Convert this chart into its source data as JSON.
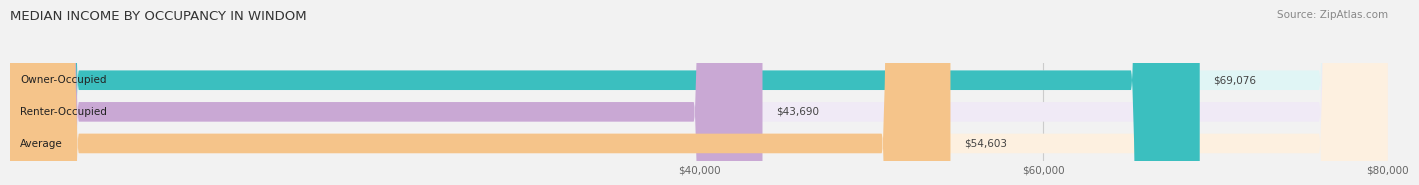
{
  "title": "MEDIAN INCOME BY OCCUPANCY IN WINDOM",
  "source": "Source: ZipAtlas.com",
  "categories": [
    "Owner-Occupied",
    "Renter-Occupied",
    "Average"
  ],
  "values": [
    69076,
    43690,
    54603
  ],
  "labels": [
    "$69,076",
    "$43,690",
    "$54,603"
  ],
  "bar_colors": [
    "#3bbfbf",
    "#c9a8d4",
    "#f5c48a"
  ],
  "bar_bg_colors": [
    "#e0f5f5",
    "#f0eaf6",
    "#fdf0e0"
  ],
  "xlim": [
    0,
    80000
  ],
  "xticks": [
    40000,
    60000,
    80000
  ],
  "xticklabels": [
    "$40,000",
    "$60,000",
    "$80,000"
  ],
  "title_fontsize": 9.5,
  "source_fontsize": 7.5,
  "label_fontsize": 7.5,
  "value_fontsize": 7.5,
  "background_color": "#f2f2f2"
}
